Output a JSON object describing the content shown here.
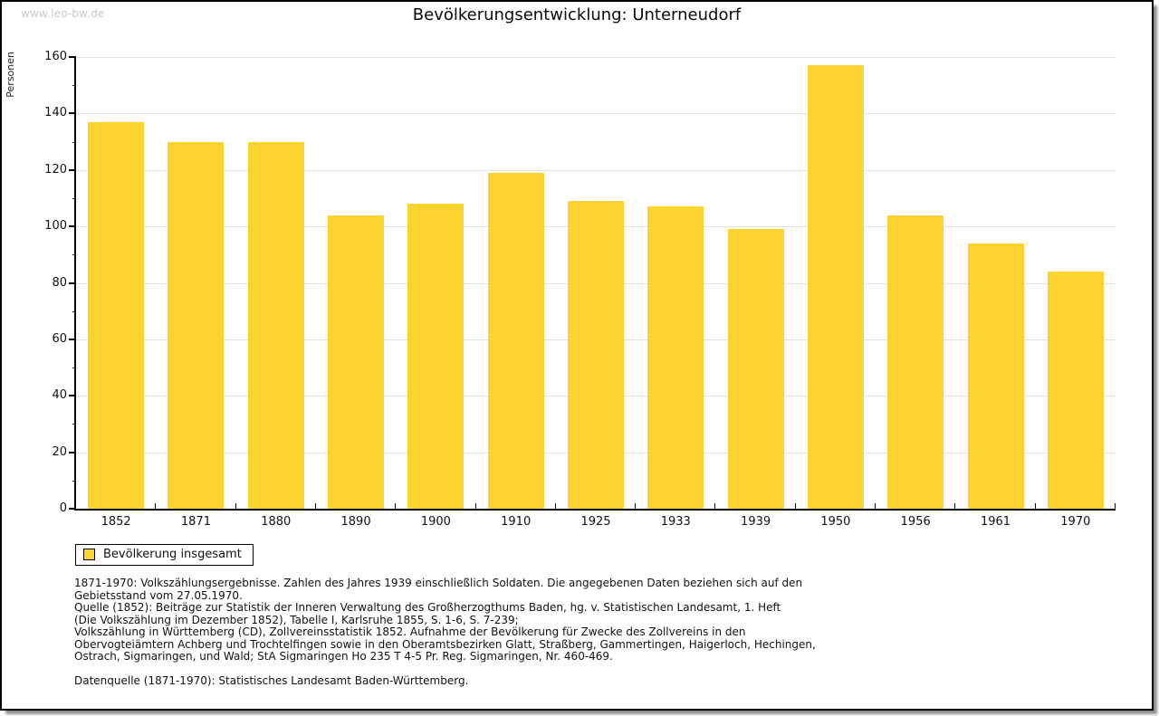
{
  "page": {
    "watermark": "www.leo-bw.de",
    "title": "Bevölkerungsentwicklung: Unterneudorf"
  },
  "chart_data": {
    "type": "bar",
    "title": "Bevölkerungsentwicklung: Unterneudorf",
    "xlabel": "",
    "ylabel": "Personen",
    "categories": [
      "1852",
      "1871",
      "1880",
      "1890",
      "1900",
      "1910",
      "1925",
      "1933",
      "1939",
      "1950",
      "1956",
      "1961",
      "1970"
    ],
    "series": [
      {
        "name": "Bevölkerung insgesamt",
        "values": [
          137,
          130,
          130,
          104,
          108,
          119,
          109,
          107,
          99,
          157,
          104,
          94,
          84
        ]
      }
    ],
    "ylim": [
      0,
      160
    ],
    "ytick_step": 20,
    "ytick_minor_step": 10,
    "grid": "horizontal",
    "legend_position": "bottom-left",
    "bar_color": "#FDD32F",
    "gridline_color": "#e0e0e0",
    "axis_color": "#000000"
  },
  "legend": {
    "items": [
      {
        "label": "Bevölkerung insgesamt",
        "swatch_color": "#FDD32F"
      }
    ]
  },
  "footnote": {
    "text": "1871-1970: Volkszählungsergebnisse. Zahlen des Jahres 1939 einschließlich Soldaten. Die angegebenen Daten beziehen sich auf den\nGebietsstand vom 27.05.1970.\nQuelle (1852): Beiträge zur Statistik der Inneren Verwaltung des Großherzogthums Baden, hg. v. Statistischen Landesamt, 1. Heft\n(Die Volkszählung im Dezember 1852), Tabelle I, Karlsruhe 1855, S. 1-6, S. 7-239;\nVolkszählung in Württemberg (CD), Zollvereinsstatistik 1852. Aufnahme der Bevölkerung für Zwecke des Zollvereins in den\nObervogteiämtern Achberg und Trochtelfingen sowie in den Oberamtsbezirken Glatt, Straßberg, Gammertingen, Haigerloch, Hechingen,\nOstrach, Sigmaringen, und Wald; StA Sigmaringen Ho 235 T 4-5 Pr. Reg. Sigmaringen, Nr. 460-469.\n\nDatenquelle (1871-1970): Statistisches Landesamt Baden-Württemberg."
  },
  "colors": {
    "bar": "#FDD32F",
    "grid": "#e0e0e0",
    "axis": "#000000",
    "text": "#111111",
    "watermark": "#c9c9c9",
    "page_border": "#000000"
  }
}
